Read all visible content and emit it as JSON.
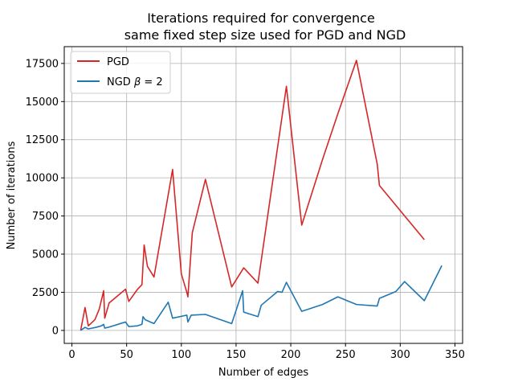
{
  "chart_data": {
    "type": "line",
    "title": "Iterations required for convergence",
    "subtitle": "same fixed step size used for PGD and NGD",
    "xlabel": "Number of edges",
    "ylabel": "Number of iterations",
    "xlim": [
      -7,
      357
    ],
    "ylim": [
      -850,
      18600
    ],
    "xticks": [
      0,
      50,
      100,
      150,
      200,
      250,
      300,
      350
    ],
    "yticks": [
      0,
      2500,
      5000,
      7500,
      10000,
      12500,
      15000,
      17500
    ],
    "grid": true,
    "legend_position": "top-left",
    "series": [
      {
        "name": "PGD",
        "color": "#d62728",
        "points": [
          [
            8,
            0
          ],
          [
            12,
            1500
          ],
          [
            15,
            300
          ],
          [
            21,
            700
          ],
          [
            25,
            1400
          ],
          [
            29,
            2600
          ],
          [
            30,
            800
          ],
          [
            34,
            1800
          ],
          [
            49,
            2700
          ],
          [
            52,
            1900
          ],
          [
            60,
            2700
          ],
          [
            64,
            3000
          ],
          [
            66,
            5600
          ],
          [
            69,
            4200
          ],
          [
            75,
            3500
          ],
          [
            92,
            10550
          ],
          [
            100,
            3700
          ],
          [
            105,
            2500
          ],
          [
            106,
            2200
          ],
          [
            110,
            6400
          ],
          [
            122,
            9900
          ],
          [
            146,
            2850
          ],
          [
            157,
            4100
          ],
          [
            170,
            3100
          ],
          [
            196,
            16000
          ],
          [
            210,
            6900
          ],
          [
            229,
            11200
          ],
          [
            243,
            14200
          ],
          [
            260,
            17700
          ],
          [
            279,
            10900
          ],
          [
            281,
            9500
          ],
          [
            322,
            5950
          ]
        ]
      },
      {
        "name": "NGD β = 2",
        "color": "#1f77b4",
        "points": [
          [
            8,
            0
          ],
          [
            12,
            200
          ],
          [
            15,
            100
          ],
          [
            22,
            200
          ],
          [
            27,
            300
          ],
          [
            29,
            400
          ],
          [
            30,
            150
          ],
          [
            33,
            200
          ],
          [
            49,
            550
          ],
          [
            52,
            250
          ],
          [
            60,
            300
          ],
          [
            64,
            400
          ],
          [
            65,
            900
          ],
          [
            67,
            700
          ],
          [
            75,
            450
          ],
          [
            88,
            1850
          ],
          [
            92,
            800
          ],
          [
            105,
            1000
          ],
          [
            106,
            550
          ],
          [
            109,
            1000
          ],
          [
            122,
            1050
          ],
          [
            146,
            450
          ],
          [
            156,
            2600
          ],
          [
            157,
            1200
          ],
          [
            170,
            900
          ],
          [
            173,
            1650
          ],
          [
            188,
            2550
          ],
          [
            192,
            2500
          ],
          [
            196,
            3150
          ],
          [
            210,
            1250
          ],
          [
            229,
            1700
          ],
          [
            243,
            2200
          ],
          [
            260,
            1700
          ],
          [
            279,
            1600
          ],
          [
            281,
            2100
          ],
          [
            296,
            2550
          ],
          [
            304,
            3200
          ],
          [
            322,
            1950
          ],
          [
            338,
            4250
          ]
        ]
      }
    ]
  },
  "legend": {
    "pgd_label": "PGD",
    "ngd_label_prefix": "NGD ",
    "ngd_label_beta": "β",
    "ngd_label_suffix": " = 2"
  }
}
